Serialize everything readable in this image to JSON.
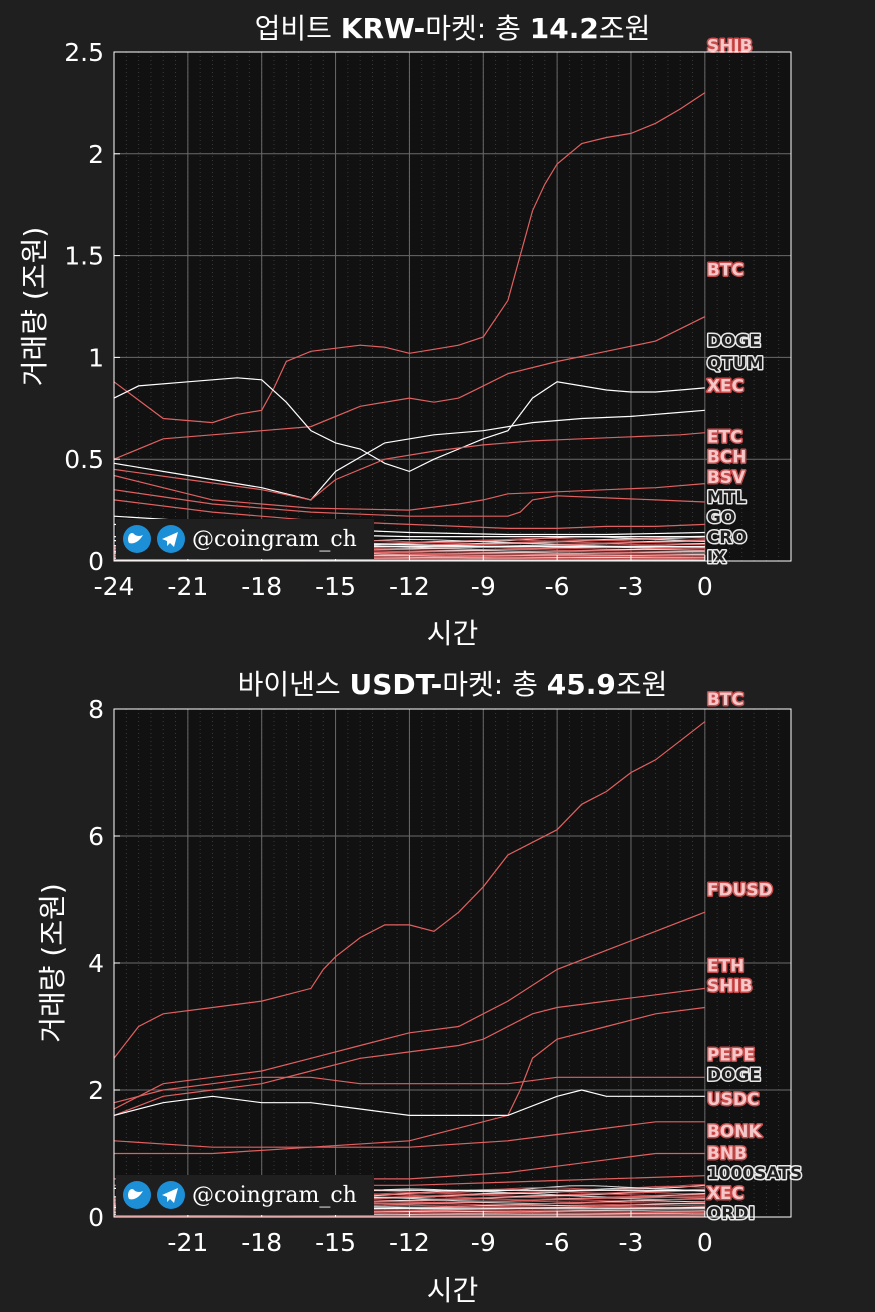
{
  "watermark": {
    "handle": "@coingram_ch",
    "icons": [
      "twitter-bird-icon",
      "telegram-plane-icon"
    ]
  },
  "colors": {
    "background": "#1f1f1f",
    "plot_bg": "#111111",
    "axis": "#ffffff",
    "grid": "#6a6a6a",
    "up": "#e06060",
    "down": "#ffffff",
    "icon_blue": "#1d8fd6"
  },
  "chart_data": [
    {
      "type": "line",
      "title_plain": "업비트 ",
      "title_bold": "KRW-",
      "title_mid": "마켓: 총 ",
      "title_total": "14.2",
      "title_unit": "조원",
      "xlabel": "시간",
      "ylabel": "거래량 (조원)",
      "xlim": [
        -24,
        3.5
      ],
      "ylim": [
        0,
        2.5
      ],
      "x_ticks": [
        -24,
        -21,
        -18,
        -15,
        -12,
        -9,
        -6,
        -3,
        0
      ],
      "x_tick_labels": [
        "-24",
        "-21",
        "-18",
        "-15",
        "-12",
        "-9",
        "-6",
        "-3",
        "0"
      ],
      "y_ticks": [
        0,
        0.5,
        1,
        1.5,
        2,
        2.5
      ],
      "y_tick_labels": [
        "0",
        "0.5",
        "1",
        "1.5",
        "2",
        "2.5"
      ],
      "grid": true,
      "series": [
        {
          "name": "SHIB",
          "trend": "up",
          "x": [
            -24,
            -22,
            -20,
            -19,
            -18,
            -17.5,
            -17,
            -16,
            -14,
            -13,
            -12,
            -11,
            -10,
            -9,
            -8,
            -7.5,
            -7,
            -6.5,
            -6,
            -5,
            -4,
            -3,
            -2,
            -1,
            0
          ],
          "y": [
            0.88,
            0.7,
            0.68,
            0.72,
            0.74,
            0.85,
            0.98,
            1.03,
            1.06,
            1.05,
            1.02,
            1.04,
            1.06,
            1.1,
            1.28,
            1.5,
            1.72,
            1.85,
            1.95,
            2.05,
            2.08,
            2.1,
            2.15,
            2.22,
            2.3
          ]
        },
        {
          "name": "BTC",
          "trend": "up",
          "x": [
            -24,
            -22,
            -20,
            -18,
            -16,
            -14,
            -12,
            -11,
            -10,
            -9,
            -8,
            -6,
            -4,
            -2,
            0
          ],
          "y": [
            0.5,
            0.6,
            0.62,
            0.64,
            0.66,
            0.76,
            0.8,
            0.78,
            0.8,
            0.86,
            0.92,
            0.98,
            1.03,
            1.08,
            1.2
          ]
        },
        {
          "name": "DOGE",
          "trend": "down",
          "x": [
            -24,
            -23,
            -21,
            -19,
            -18,
            -17,
            -16,
            -15,
            -14,
            -13,
            -12,
            -11,
            -10,
            -9,
            -8,
            -7,
            -6,
            -5,
            -4,
            -3,
            -2,
            -1,
            0
          ],
          "y": [
            0.8,
            0.86,
            0.88,
            0.9,
            0.89,
            0.78,
            0.64,
            0.58,
            0.55,
            0.48,
            0.44,
            0.5,
            0.55,
            0.6,
            0.64,
            0.8,
            0.88,
            0.86,
            0.84,
            0.83,
            0.83,
            0.84,
            0.85
          ]
        },
        {
          "name": "QTUM",
          "trend": "down",
          "x": [
            -24,
            -21,
            -18,
            -16,
            -15,
            -13,
            -11,
            -9,
            -7,
            -5,
            -3,
            -1,
            0
          ],
          "y": [
            0.48,
            0.42,
            0.36,
            0.3,
            0.44,
            0.58,
            0.62,
            0.64,
            0.68,
            0.7,
            0.71,
            0.73,
            0.74
          ]
        },
        {
          "name": "XEC",
          "trend": "up",
          "x": [
            -24,
            -21,
            -18,
            -16,
            -15,
            -13,
            -11,
            -9,
            -7,
            -5,
            -3,
            -1,
            0
          ],
          "y": [
            0.45,
            0.4,
            0.35,
            0.3,
            0.4,
            0.5,
            0.54,
            0.57,
            0.59,
            0.6,
            0.61,
            0.62,
            0.63
          ]
        },
        {
          "name": "ETC",
          "trend": "up",
          "x": [
            -24,
            -20,
            -16,
            -12,
            -10,
            -9,
            -8,
            -6,
            -4,
            -2,
            0
          ],
          "y": [
            0.42,
            0.3,
            0.26,
            0.25,
            0.28,
            0.3,
            0.33,
            0.34,
            0.35,
            0.36,
            0.38
          ]
        },
        {
          "name": "BCH",
          "trend": "up",
          "x": [
            -24,
            -20,
            -16,
            -12,
            -8,
            -7.5,
            -7,
            -6,
            -4,
            -2,
            0
          ],
          "y": [
            0.35,
            0.28,
            0.24,
            0.22,
            0.22,
            0.24,
            0.3,
            0.32,
            0.31,
            0.3,
            0.29
          ]
        },
        {
          "name": "BSV",
          "trend": "up",
          "x": [
            -24,
            -20,
            -16,
            -12,
            -8,
            -6,
            -4,
            -2,
            0
          ],
          "y": [
            0.3,
            0.24,
            0.2,
            0.18,
            0.16,
            0.16,
            0.17,
            0.17,
            0.18
          ]
        },
        {
          "name": "MTL",
          "trend": "down",
          "x": [
            -24,
            -20,
            -16,
            -12,
            -8,
            -4,
            0
          ],
          "y": [
            0.22,
            0.19,
            0.16,
            0.14,
            0.13,
            0.13,
            0.14
          ]
        },
        {
          "name": "GO",
          "trend": "down",
          "x": [
            -24,
            -20,
            -16,
            -12,
            -8,
            -4,
            0
          ],
          "y": [
            0.18,
            0.15,
            0.13,
            0.12,
            0.12,
            0.12,
            0.12
          ]
        },
        {
          "name": "CRO",
          "trend": "down",
          "x": [
            -24,
            -20,
            -16,
            -12,
            -8,
            -4,
            0
          ],
          "y": [
            0.12,
            0.1,
            0.09,
            0.08,
            0.07,
            0.07,
            0.07
          ]
        },
        {
          "name": "IX",
          "trend": "down",
          "x": [
            -24,
            -20,
            -16,
            -12,
            -8,
            -4,
            0
          ],
          "y": [
            0.1,
            0.09,
            0.08,
            0.07,
            0.07,
            0.07,
            0.07
          ]
        }
      ],
      "bundle_count": 28,
      "bundle_max": 0.12
    },
    {
      "type": "line",
      "title_plain": "바이낸스 ",
      "title_bold": "USDT-",
      "title_mid": "마켓: 총 ",
      "title_total": "45.9",
      "title_unit": "조원",
      "xlabel": "시간",
      "ylabel": "거래량 (조원)",
      "xlim": [
        -24,
        3.5
      ],
      "ylim": [
        0,
        8
      ],
      "x_ticks": [
        -21,
        -18,
        -15,
        -12,
        -9,
        -6,
        -3,
        0
      ],
      "x_tick_labels": [
        "-21",
        "-18",
        "-15",
        "-12",
        "-9",
        "-6",
        "-3",
        "0"
      ],
      "y_ticks": [
        0,
        2,
        4,
        6,
        8
      ],
      "y_tick_labels": [
        "0",
        "2",
        "4",
        "6",
        "8"
      ],
      "grid": true,
      "series": [
        {
          "name": "BTC",
          "trend": "up",
          "x": [
            -24,
            -23,
            -22,
            -20,
            -18,
            -17,
            -16,
            -15.5,
            -15,
            -14,
            -13,
            -12,
            -11,
            -10,
            -9,
            -8,
            -6,
            -5,
            -4,
            -3,
            -2,
            -1,
            0
          ],
          "y": [
            2.5,
            3.0,
            3.2,
            3.3,
            3.4,
            3.5,
            3.6,
            3.9,
            4.1,
            4.4,
            4.6,
            4.6,
            4.5,
            4.8,
            5.2,
            5.7,
            6.1,
            6.5,
            6.7,
            7.0,
            7.2,
            7.5,
            7.8
          ]
        },
        {
          "name": "FDUSD",
          "trend": "up",
          "x": [
            -24,
            -22,
            -20,
            -18,
            -16,
            -14,
            -12,
            -10,
            -8,
            -6,
            -4,
            -2,
            0
          ],
          "y": [
            1.7,
            2.1,
            2.2,
            2.3,
            2.5,
            2.7,
            2.9,
            3.0,
            3.4,
            3.9,
            4.2,
            4.5,
            4.8
          ]
        },
        {
          "name": "ETH",
          "trend": "up",
          "x": [
            -24,
            -22,
            -20,
            -18,
            -16,
            -14,
            -12,
            -10,
            -9,
            -8,
            -7,
            -6,
            -4,
            -2,
            0
          ],
          "y": [
            1.6,
            1.9,
            2.0,
            2.1,
            2.3,
            2.5,
            2.6,
            2.7,
            2.8,
            3.0,
            3.2,
            3.3,
            3.4,
            3.5,
            3.6
          ]
        },
        {
          "name": "SHIB",
          "trend": "up",
          "x": [
            -24,
            -20,
            -16,
            -12,
            -10,
            -8,
            -7.5,
            -7,
            -6,
            -4,
            -2,
            0
          ],
          "y": [
            1.2,
            1.1,
            1.1,
            1.2,
            1.4,
            1.6,
            2.0,
            2.5,
            2.8,
            3.0,
            3.2,
            3.3
          ]
        },
        {
          "name": "PEPE",
          "trend": "up",
          "x": [
            -24,
            -22,
            -20,
            -18,
            -16,
            -14,
            -12,
            -10,
            -8,
            -6,
            -4,
            -2,
            0
          ],
          "y": [
            1.8,
            2.0,
            2.1,
            2.2,
            2.2,
            2.1,
            2.1,
            2.1,
            2.1,
            2.2,
            2.2,
            2.2,
            2.2
          ]
        },
        {
          "name": "DOGE",
          "trend": "down",
          "x": [
            -24,
            -22,
            -20,
            -18,
            -16,
            -14,
            -12,
            -10,
            -8,
            -6,
            -5,
            -4,
            -2,
            0
          ],
          "y": [
            1.6,
            1.8,
            1.9,
            1.8,
            1.8,
            1.7,
            1.6,
            1.6,
            1.6,
            1.9,
            2.0,
            1.9,
            1.9,
            1.9
          ]
        },
        {
          "name": "USDC",
          "trend": "up",
          "x": [
            -24,
            -20,
            -16,
            -12,
            -8,
            -6,
            -4,
            -2,
            0
          ],
          "y": [
            1.0,
            1.0,
            1.1,
            1.1,
            1.2,
            1.3,
            1.4,
            1.5,
            1.5
          ]
        },
        {
          "name": "BONK",
          "trend": "up",
          "x": [
            -24,
            -20,
            -16,
            -12,
            -8,
            -6,
            -4,
            -2,
            0
          ],
          "y": [
            0.6,
            0.6,
            0.6,
            0.6,
            0.7,
            0.8,
            0.9,
            1.0,
            1.0
          ]
        },
        {
          "name": "BNB",
          "trend": "up",
          "x": [
            -24,
            -20,
            -16,
            -12,
            -8,
            -4,
            0
          ],
          "y": [
            0.5,
            0.5,
            0.5,
            0.5,
            0.55,
            0.6,
            0.65
          ]
        },
        {
          "name": "1000SATS",
          "trend": "down",
          "x": [
            -24,
            -20,
            -16,
            -12,
            -8,
            -4,
            0
          ],
          "y": [
            0.45,
            0.44,
            0.43,
            0.42,
            0.42,
            0.42,
            0.42
          ]
        },
        {
          "name": "XEC",
          "trend": "up",
          "x": [
            -24,
            -20,
            -16,
            -12,
            -8,
            -4,
            0
          ],
          "y": [
            0.2,
            0.2,
            0.2,
            0.22,
            0.25,
            0.3,
            0.32
          ]
        },
        {
          "name": "ORDI",
          "trend": "down",
          "x": [
            -24,
            -20,
            -16,
            -12,
            -8,
            -4,
            0
          ],
          "y": [
            0.15,
            0.14,
            0.14,
            0.14,
            0.14,
            0.14,
            0.14
          ]
        }
      ],
      "bundle_count": 30,
      "bundle_max": 0.5
    }
  ]
}
